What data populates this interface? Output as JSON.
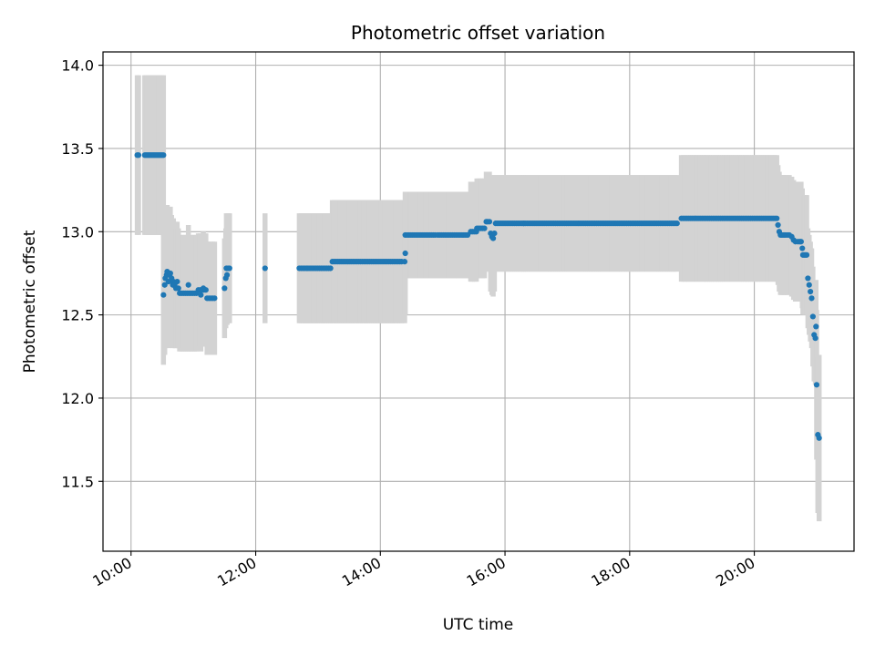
{
  "chart_data": {
    "type": "scatter",
    "title": "Photometric offset variation",
    "xlabel": "UTC time",
    "ylabel": "Photometric offset",
    "x_unit": "hours UTC",
    "xlim": [
      9.55,
      21.6
    ],
    "ylim": [
      11.08,
      14.08
    ],
    "x_ticks": [
      {
        "value": 10,
        "label": "10:00"
      },
      {
        "value": 12,
        "label": "12:00"
      },
      {
        "value": 14,
        "label": "14:00"
      },
      {
        "value": 16,
        "label": "16:00"
      },
      {
        "value": 18,
        "label": "18:00"
      },
      {
        "value": 20,
        "label": "20:00"
      }
    ],
    "y_ticks": [
      {
        "value": 11.5,
        "label": "11.5"
      },
      {
        "value": 12.0,
        "label": "12.0"
      },
      {
        "value": 12.5,
        "label": "12.5"
      },
      {
        "value": 13.0,
        "label": "13.0"
      },
      {
        "value": 13.5,
        "label": "13.5"
      },
      {
        "value": 14.0,
        "label": "14.0"
      }
    ],
    "grid": true,
    "marker_color": "#1f77b4",
    "errorbar_color": "#d3d3d3",
    "segments": [
      {
        "x_start": 10.1,
        "x_end": 10.12,
        "step": 0.02,
        "y": 13.46,
        "err": 0.48
      },
      {
        "x_start": 10.22,
        "x_end": 10.52,
        "step": 0.02,
        "y": 13.46,
        "err": 0.48
      },
      {
        "x_start": 10.78,
        "x_end": 11.05,
        "step": 0.03,
        "y": 12.63,
        "err": 0.35
      },
      {
        "x_start": 11.08,
        "x_end": 11.2,
        "step": 0.03,
        "y": 12.65,
        "err": 0.34
      },
      {
        "x_start": 11.22,
        "x_end": 11.35,
        "step": 0.03,
        "y": 12.6,
        "err": 0.34
      },
      {
        "x_start": 11.53,
        "x_end": 11.58,
        "step": 0.025,
        "y": 12.78,
        "err": 0.33
      },
      {
        "x_start": 12.7,
        "x_end": 12.82,
        "step": 0.03,
        "y": 12.78,
        "err": 0.33
      },
      {
        "x_start": 12.84,
        "x_end": 13.2,
        "step": 0.03,
        "y": 12.78,
        "err": 0.33
      },
      {
        "x_start": 13.23,
        "x_end": 14.35,
        "step": 0.03,
        "y": 12.82,
        "err": 0.37
      },
      {
        "x_start": 14.4,
        "x_end": 14.9,
        "step": 0.03,
        "y": 12.98,
        "err": 0.26
      },
      {
        "x_start": 14.92,
        "x_end": 15.4,
        "step": 0.03,
        "y": 12.98,
        "err": 0.26
      },
      {
        "x_start": 15.45,
        "x_end": 15.55,
        "step": 0.03,
        "y": 13.0,
        "err": 0.3
      },
      {
        "x_start": 15.55,
        "x_end": 15.68,
        "step": 0.03,
        "y": 13.02,
        "err": 0.3
      },
      {
        "x_start": 15.85,
        "x_end": 16.3,
        "step": 0.03,
        "y": 13.05,
        "err": 0.29
      },
      {
        "x_start": 16.3,
        "x_end": 18.78,
        "step": 0.03,
        "y": 13.05,
        "err": 0.29
      },
      {
        "x_start": 18.83,
        "x_end": 20.38,
        "step": 0.03,
        "y": 13.08,
        "err": 0.38
      }
    ],
    "points": [
      [
        10.52,
        12.62,
        0.42
      ],
      [
        10.54,
        12.68,
        0.42
      ],
      [
        10.55,
        12.72,
        0.42
      ],
      [
        10.57,
        12.74,
        0.42
      ],
      [
        10.58,
        12.76,
        0.4
      ],
      [
        10.6,
        12.7,
        0.4
      ],
      [
        10.62,
        12.74,
        0.4
      ],
      [
        10.63,
        12.75,
        0.4
      ],
      [
        10.65,
        12.72,
        0.38
      ],
      [
        10.67,
        12.68,
        0.38
      ],
      [
        10.68,
        12.7,
        0.38
      ],
      [
        10.7,
        12.68,
        0.38
      ],
      [
        10.72,
        12.66,
        0.36
      ],
      [
        10.74,
        12.7,
        0.36
      ],
      [
        10.76,
        12.66,
        0.36
      ],
      [
        10.92,
        12.68,
        0.36
      ],
      [
        11.12,
        12.62,
        0.34
      ],
      [
        11.16,
        12.66,
        0.34
      ],
      [
        11.5,
        12.66,
        0.3
      ],
      [
        11.52,
        12.72,
        0.3
      ],
      [
        11.54,
        12.74,
        0.3
      ],
      [
        12.15,
        12.78,
        0.33
      ],
      [
        14.39,
        12.82,
        0.37
      ],
      [
        14.4,
        12.87,
        0.37
      ],
      [
        15.7,
        13.06,
        0.3
      ],
      [
        15.72,
        13.06,
        0.3
      ],
      [
        15.75,
        13.06,
        0.3
      ],
      [
        15.77,
        12.99,
        0.35
      ],
      [
        15.79,
        12.97,
        0.35
      ],
      [
        15.81,
        12.96,
        0.35
      ],
      [
        15.83,
        12.99,
        0.35
      ],
      [
        20.38,
        13.04,
        0.36
      ],
      [
        20.4,
        13.0,
        0.36
      ],
      [
        20.42,
        12.98,
        0.36
      ],
      [
        20.44,
        12.98,
        0.36
      ],
      [
        20.46,
        12.98,
        0.36
      ],
      [
        20.48,
        12.98,
        0.36
      ],
      [
        20.5,
        12.98,
        0.36
      ],
      [
        20.53,
        12.98,
        0.36
      ],
      [
        20.56,
        12.98,
        0.36
      ],
      [
        20.6,
        12.97,
        0.36
      ],
      [
        20.63,
        12.95,
        0.36
      ],
      [
        20.66,
        12.94,
        0.36
      ],
      [
        20.7,
        12.94,
        0.36
      ],
      [
        20.73,
        12.94,
        0.36
      ],
      [
        20.75,
        12.94,
        0.36
      ],
      [
        20.77,
        12.9,
        0.36
      ],
      [
        20.78,
        12.86,
        0.36
      ],
      [
        20.8,
        12.86,
        0.36
      ],
      [
        20.82,
        12.86,
        0.36
      ],
      [
        20.84,
        12.86,
        0.36
      ],
      [
        20.86,
        12.72,
        0.3
      ],
      [
        20.88,
        12.68,
        0.3
      ],
      [
        20.9,
        12.64,
        0.3
      ],
      [
        20.92,
        12.6,
        0.3
      ],
      [
        20.94,
        12.49,
        0.3
      ],
      [
        20.96,
        12.38,
        0.28
      ],
      [
        20.98,
        12.36,
        0.28
      ],
      [
        20.99,
        12.43,
        0.28
      ],
      [
        21.0,
        12.08,
        0.45
      ],
      [
        21.02,
        11.78,
        0.47
      ],
      [
        21.04,
        11.76,
        0.5
      ]
    ]
  }
}
